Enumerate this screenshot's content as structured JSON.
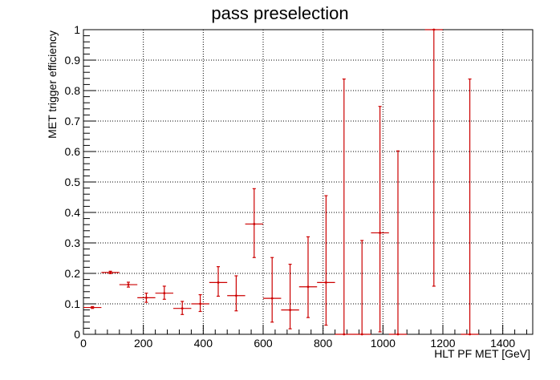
{
  "chart_data": {
    "type": "scatter",
    "title": "pass preselection",
    "xlabel": "HLT PF MET [GeV]",
    "ylabel": "MET trigger efficiency",
    "xlim": [
      0,
      1500
    ],
    "ylim": [
      0,
      1
    ],
    "x_ticks": [
      0,
      200,
      400,
      600,
      800,
      1000,
      1200,
      1400
    ],
    "y_ticks": [
      0,
      0.1,
      0.2,
      0.3,
      0.4,
      0.5,
      0.6,
      0.7,
      0.8,
      0.9,
      1
    ],
    "x_tick_labels": [
      "0",
      "200",
      "400",
      "600",
      "800",
      "1000",
      "1200",
      "1400"
    ],
    "y_tick_labels": [
      "0",
      "0.1",
      "0.2",
      "0.3",
      "0.4",
      "0.5",
      "0.6",
      "0.7",
      "0.8",
      "0.9",
      "1"
    ],
    "grid": true,
    "marker_color": "#cc0000",
    "series": [
      {
        "points": [
          {
            "x": 30,
            "xerr": 30,
            "y": 0.088,
            "ylo": 0.085,
            "yhi": 0.091
          },
          {
            "x": 90,
            "xerr": 30,
            "y": 0.203,
            "ylo": 0.199,
            "yhi": 0.207
          },
          {
            "x": 150,
            "xerr": 30,
            "y": 0.163,
            "ylo": 0.155,
            "yhi": 0.171
          },
          {
            "x": 210,
            "xerr": 30,
            "y": 0.12,
            "ylo": 0.105,
            "yhi": 0.135
          },
          {
            "x": 270,
            "xerr": 30,
            "y": 0.135,
            "ylo": 0.115,
            "yhi": 0.158
          },
          {
            "x": 330,
            "xerr": 30,
            "y": 0.085,
            "ylo": 0.065,
            "yhi": 0.108
          },
          {
            "x": 390,
            "xerr": 30,
            "y": 0.1,
            "ylo": 0.075,
            "yhi": 0.13
          },
          {
            "x": 450,
            "xerr": 30,
            "y": 0.17,
            "ylo": 0.125,
            "yhi": 0.222
          },
          {
            "x": 510,
            "xerr": 30,
            "y": 0.127,
            "ylo": 0.077,
            "yhi": 0.192
          },
          {
            "x": 570,
            "xerr": 30,
            "y": 0.362,
            "ylo": 0.252,
            "yhi": 0.478
          },
          {
            "x": 630,
            "xerr": 30,
            "y": 0.118,
            "ylo": 0.04,
            "yhi": 0.252
          },
          {
            "x": 690,
            "xerr": 30,
            "y": 0.08,
            "ylo": 0.018,
            "yhi": 0.23
          },
          {
            "x": 750,
            "xerr": 30,
            "y": 0.156,
            "ylo": 0.055,
            "yhi": 0.32
          },
          {
            "x": 810,
            "xerr": 30,
            "y": 0.17,
            "ylo": 0.03,
            "yhi": 0.455
          },
          {
            "x": 870,
            "xerr": 30,
            "y": 0.0,
            "ylo": 0.0,
            "yhi": 0.838
          },
          {
            "x": 930,
            "xerr": 30,
            "y": 0.0,
            "ylo": 0.0,
            "yhi": 0.308
          },
          {
            "x": 990,
            "xerr": 30,
            "y": 0.333,
            "ylo": 0.008,
            "yhi": 0.748
          },
          {
            "x": 1050,
            "xerr": 30,
            "y": 0.0,
            "ylo": 0.0,
            "yhi": 0.602
          },
          {
            "x": 1170,
            "xerr": 30,
            "y": 1.0,
            "ylo": 0.158,
            "yhi": 1.0
          },
          {
            "x": 1290,
            "xerr": 30,
            "y": 0.0,
            "ylo": 0.0,
            "yhi": 0.838
          }
        ]
      }
    ]
  }
}
